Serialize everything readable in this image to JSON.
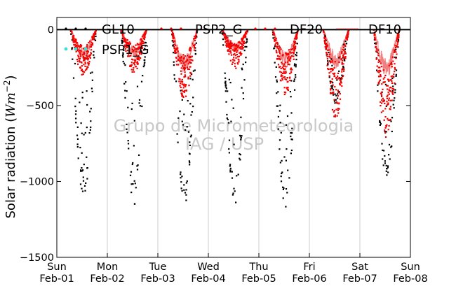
{
  "chart_data": {
    "type": "scatter",
    "ylabel_text": "Solar radiation (",
    "ylabel_unit_base": "Wm",
    "ylabel_unit_exp": "−2",
    "ylabel_close": ")",
    "ylim": [
      -1500,
      80
    ],
    "yticks": [
      {
        "value": 0,
        "label": "0"
      },
      {
        "value": -500,
        "label": "−500"
      },
      {
        "value": -1000,
        "label": "−1000"
      },
      {
        "value": -1500,
        "label": "−1500"
      }
    ],
    "xlim": [
      "2015-02-01",
      "2015-02-08"
    ],
    "xticks": [
      {
        "day": "Sun",
        "date": "Feb-01"
      },
      {
        "day": "Mon",
        "date": "Feb-02"
      },
      {
        "day": "Tue",
        "date": "Feb-03"
      },
      {
        "day": "Wed",
        "date": "Feb-04"
      },
      {
        "day": "Thu",
        "date": "Feb-05"
      },
      {
        "day": "Fri",
        "date": "Feb-06"
      },
      {
        "day": "Sat",
        "date": "Feb-07"
      },
      {
        "day": "Sun",
        "date": "Feb-08"
      }
    ],
    "grid": "vertical",
    "legend_position": "top",
    "zero_line": true,
    "watermark": [
      "Grupo de Micrometeorologia",
      "IAG / USP"
    ],
    "series": [
      {
        "name": "GL10",
        "marker": "dots",
        "color": "#000000",
        "daily_peak_min": [
          -1130,
          -1170,
          -1180,
          -1150,
          -1190,
          -490,
          -990
        ]
      },
      {
        "name": "PSP1_G",
        "marker": "dots",
        "color": "#40e0d0",
        "daily_peak_min": []
      },
      {
        "name": "PSP2_G",
        "marker": "dots",
        "color": "#e00000",
        "daily_peak_min": [
          -310,
          -290,
          -470,
          -260,
          -440,
          -590,
          -720
        ]
      },
      {
        "name": "DF20",
        "marker": "dots",
        "color": "#ff0000",
        "daily_peak_min": [
          -300,
          -280,
          -460,
          -250,
          -420,
          -580,
          -700
        ]
      },
      {
        "name": "DF10",
        "marker": "line",
        "color": "#f08080",
        "daily_peak_min": [
          -210,
          -200,
          -300,
          -160,
          -260,
          -260,
          -340
        ]
      }
    ]
  }
}
